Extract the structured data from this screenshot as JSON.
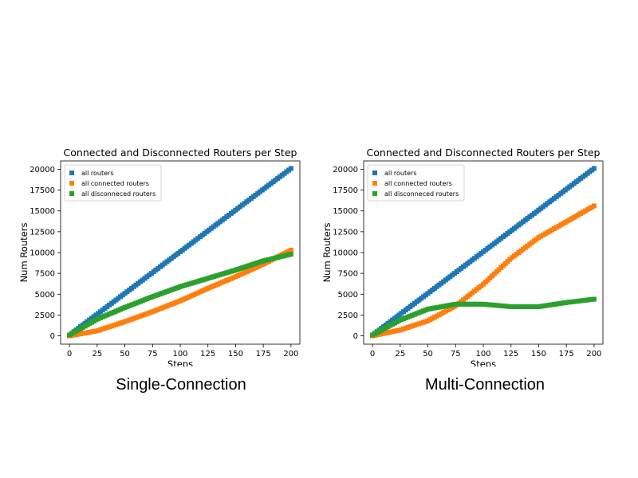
{
  "captions": [
    "Single-Connection",
    "Multi-Connection"
  ],
  "colors": {
    "blue": "#1f77b4",
    "orange": "#ff7f0e",
    "green": "#2ca02c"
  },
  "chart_data": [
    {
      "type": "scatter",
      "title": "Connected and Disconnected Routers per Step",
      "xlabel": "Steps",
      "ylabel": "Num Routers",
      "xlim": [
        -8,
        208
      ],
      "ylim": [
        -1000,
        21000
      ],
      "xticks": [
        0,
        25,
        50,
        75,
        100,
        125,
        150,
        175,
        200
      ],
      "yticks": [
        0,
        2500,
        5000,
        7500,
        10000,
        12500,
        15000,
        17500,
        20000
      ],
      "legend_position": "top-left",
      "grid": false,
      "x": [
        0,
        25,
        50,
        75,
        100,
        125,
        150,
        175,
        200
      ],
      "series": [
        {
          "name": "all routers",
          "color": "#1f77b4",
          "values": [
            100,
            2600,
            5100,
            7600,
            10100,
            12600,
            15100,
            17600,
            20100
          ]
        },
        {
          "name": "all connected routers",
          "color": "#ff7f0e",
          "values": [
            0,
            600,
            1700,
            2900,
            4200,
            5700,
            7100,
            8600,
            10300
          ]
        },
        {
          "name": "all disconneced routers",
          "color": "#2ca02c",
          "values": [
            100,
            2000,
            3400,
            4700,
            5900,
            6900,
            7900,
            9000,
            9800
          ]
        }
      ]
    },
    {
      "type": "scatter",
      "title": "Connected and Disconnected Routers per Step",
      "xlabel": "Steps",
      "ylabel": "Num Routers",
      "xlim": [
        -8,
        208
      ],
      "ylim": [
        -1000,
        21000
      ],
      "xticks": [
        0,
        25,
        50,
        75,
        100,
        125,
        150,
        175,
        200
      ],
      "yticks": [
        0,
        2500,
        5000,
        7500,
        10000,
        12500,
        15000,
        17500,
        20000
      ],
      "legend_position": "top-left",
      "grid": false,
      "x": [
        0,
        25,
        50,
        75,
        100,
        125,
        150,
        175,
        200
      ],
      "series": [
        {
          "name": "all routers",
          "color": "#1f77b4",
          "values": [
            100,
            2600,
            5100,
            7600,
            10100,
            12600,
            15100,
            17600,
            20100
          ]
        },
        {
          "name": "all connected routers",
          "color": "#ff7f0e",
          "values": [
            0,
            700,
            1800,
            3600,
            6200,
            9300,
            11800,
            13700,
            15600
          ]
        },
        {
          "name": "all disconneced routers",
          "color": "#2ca02c",
          "values": [
            100,
            1900,
            3200,
            3800,
            3800,
            3500,
            3500,
            4000,
            4400
          ]
        }
      ]
    }
  ]
}
